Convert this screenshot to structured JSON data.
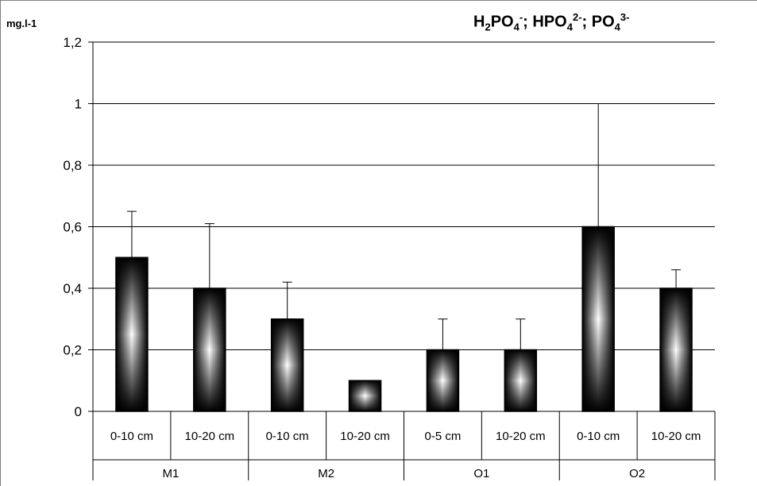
{
  "chart_data": {
    "type": "bar",
    "title": "H2PO4-; HPO42-; PO43-",
    "title_parts": [
      {
        "text": "H",
        "style": "normal"
      },
      {
        "text": "2",
        "style": "sub"
      },
      {
        "text": "PO",
        "style": "normal"
      },
      {
        "text": "4",
        "style": "sub"
      },
      {
        "text": "-",
        "style": "sup"
      },
      {
        "text": ";  HPO",
        "style": "normal"
      },
      {
        "text": "4",
        "style": "sub"
      },
      {
        "text": "2-",
        "style": "sup"
      },
      {
        "text": "; PO",
        "style": "normal"
      },
      {
        "text": "4",
        "style": "sub"
      },
      {
        "text": "3-",
        "style": "sup"
      }
    ],
    "ylabel": "mg.l-1",
    "ylim": [
      0,
      1.2
    ],
    "yticks": [
      {
        "value": 0,
        "label": "0"
      },
      {
        "value": 0.2,
        "label": "0,2"
      },
      {
        "value": 0.4,
        "label": "0,4"
      },
      {
        "value": 0.6,
        "label": "0,6"
      },
      {
        "value": 0.8,
        "label": "0,8"
      },
      {
        "value": 1.0,
        "label": "1"
      },
      {
        "value": 1.2,
        "label": "1,2"
      }
    ],
    "grid": true,
    "groups": [
      "M1",
      "M2",
      "O1",
      "O2"
    ],
    "categories": [
      "0-10 cm",
      "10-20 cm",
      "0-10 cm",
      "10-20 cm",
      "0-5 cm",
      "10-20 cm",
      "0-10 cm",
      "10-20 cm"
    ],
    "values": [
      0.5,
      0.4,
      0.3,
      0.1,
      0.2,
      0.2,
      0.6,
      0.4
    ],
    "error_upper": [
      0.65,
      0.61,
      0.42,
      null,
      0.3,
      0.3,
      1.0,
      0.46
    ]
  }
}
